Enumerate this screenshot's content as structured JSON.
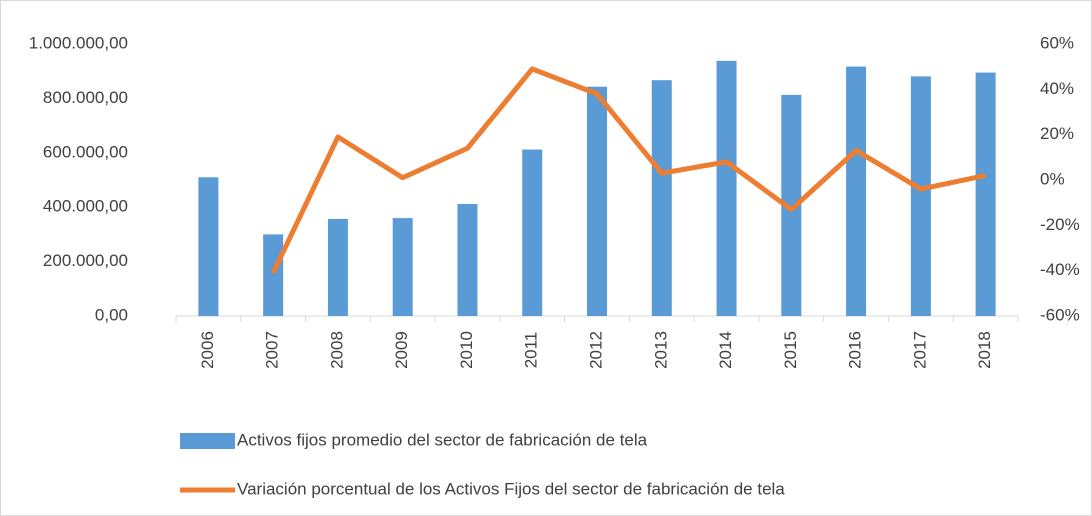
{
  "chart_data": {
    "type": "bar-line",
    "categories": [
      "2006",
      "2007",
      "2008",
      "2009",
      "2010",
      "2011",
      "2012",
      "2013",
      "2014",
      "2015",
      "2016",
      "2017",
      "2018"
    ],
    "series": [
      {
        "name": "Activos fijos promedio del sector de fabricación de tela",
        "type": "bar",
        "color": "#5b9bd5",
        "values": [
          510000,
          300000,
          357000,
          360000,
          412000,
          612000,
          843000,
          867000,
          938000,
          813000,
          917000,
          881000,
          895000
        ]
      },
      {
        "name": "Variación porcentual de los Activos Fijos del sector de fabricación de tela",
        "type": "line",
        "color": "#ed7d31",
        "axis": "y2",
        "values": [
          null,
          -41,
          19,
          1,
          14,
          49,
          38,
          3,
          8,
          -13,
          13,
          -4,
          2
        ]
      }
    ],
    "ylim": [
      0,
      1000000
    ],
    "yticks": [
      {
        "value": 0,
        "label": "0,00"
      },
      {
        "value": 200000,
        "label": "200.000,00"
      },
      {
        "value": 400000,
        "label": "400.000,00"
      },
      {
        "value": 600000,
        "label": "600.000,00"
      },
      {
        "value": 800000,
        "label": "800.000,00"
      },
      {
        "value": 1000000,
        "label": "1.000.000,00"
      }
    ],
    "y2lim": [
      -60,
      60
    ],
    "y2ticks": [
      {
        "value": -60,
        "label": "-60%"
      },
      {
        "value": -40,
        "label": "-40%"
      },
      {
        "value": -20,
        "label": "-20%"
      },
      {
        "value": 0,
        "label": "0%"
      },
      {
        "value": 20,
        "label": "20%"
      },
      {
        "value": 40,
        "label": "40%"
      },
      {
        "value": 60,
        "label": "60%"
      }
    ],
    "legend": "bottom"
  }
}
